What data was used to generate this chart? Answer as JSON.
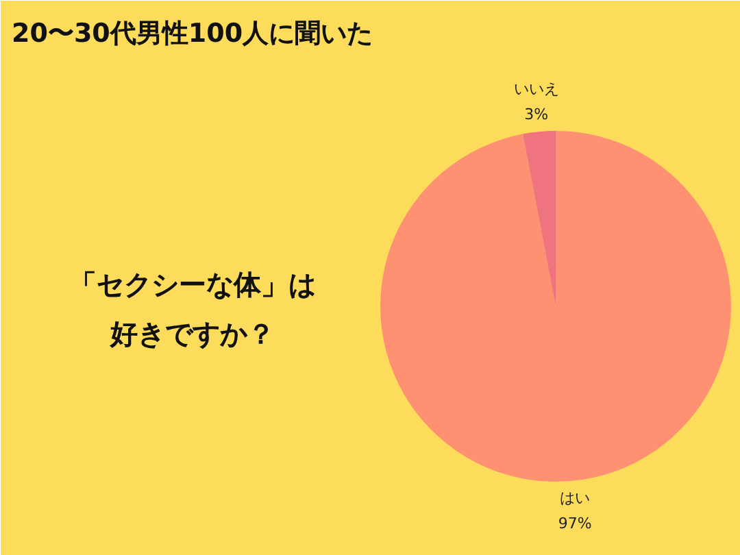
{
  "chart_data": {
    "type": "pie",
    "title": "20〜30代男性100人に聞いた",
    "subtitle": "「セクシーな体」は好きですか？",
    "categories": [
      "はい",
      "いいえ"
    ],
    "values": [
      97,
      3
    ],
    "colors": [
      "#fe9172",
      "#ef7480"
    ],
    "value_labels": [
      "97%",
      "3%"
    ]
  }
}
